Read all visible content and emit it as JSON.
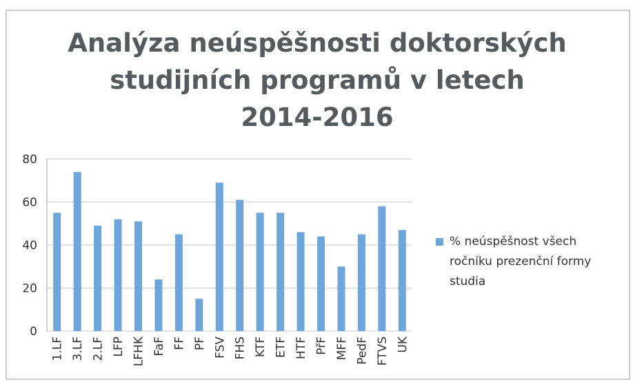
{
  "chart_data": {
    "type": "bar",
    "title": "Analýza neúspěšnosti doktorských\nstudijních programů  v letech\n2014-2016",
    "categories": [
      "1.LF",
      "3.LF",
      "2.LF",
      "LFP",
      "LFHK",
      "FaF",
      "FF",
      "PF",
      "FSV",
      "FHS",
      "KTF",
      "ETF",
      "HTF",
      "PřF",
      "MFF",
      "PedF",
      "FTVS",
      "UK"
    ],
    "series": [
      {
        "name": "% neúspěšnost všech\nročníku prezenční formy\nstudia",
        "color": "#6ea6dc",
        "values": [
          55,
          74,
          49,
          52,
          51,
          24,
          45,
          15,
          69,
          61,
          55,
          55,
          46,
          44,
          30,
          45,
          58,
          47
        ]
      }
    ],
    "ylim": [
      0,
      80
    ],
    "yticks": [
      0,
      20,
      40,
      60,
      80
    ],
    "grid": true,
    "legend": "right"
  }
}
